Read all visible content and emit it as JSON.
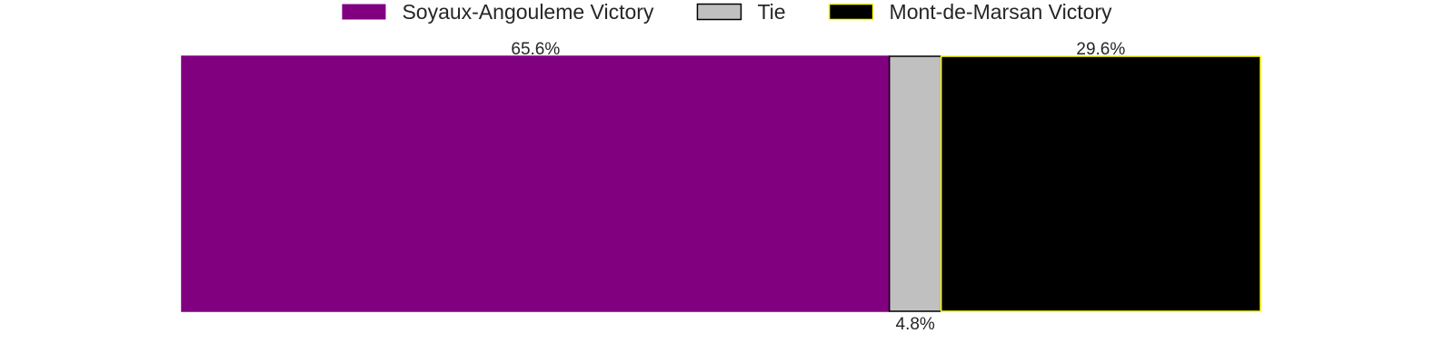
{
  "chart_data": {
    "type": "bar",
    "orientation": "horizontal-stacked",
    "title": "",
    "xlabel": "",
    "ylabel": "",
    "grid": false,
    "legend_placement": "top-center",
    "xlim": [
      0,
      100
    ],
    "series": [
      {
        "name": "Soyaux-Angouleme Victory",
        "value": 65.6,
        "label": "65.6%",
        "label_position": "top",
        "color": "#800080",
        "edge_color": "#800080"
      },
      {
        "name": "Tie",
        "value": 4.8,
        "label": "4.8%",
        "label_position": "bottom",
        "color": "#c0c0c0",
        "edge_color": "#000000"
      },
      {
        "name": "Mont-de-Marsan Victory",
        "value": 29.6,
        "label": "29.6%",
        "label_position": "top",
        "color": "#000000",
        "edge_color": "#ffff00"
      }
    ]
  }
}
